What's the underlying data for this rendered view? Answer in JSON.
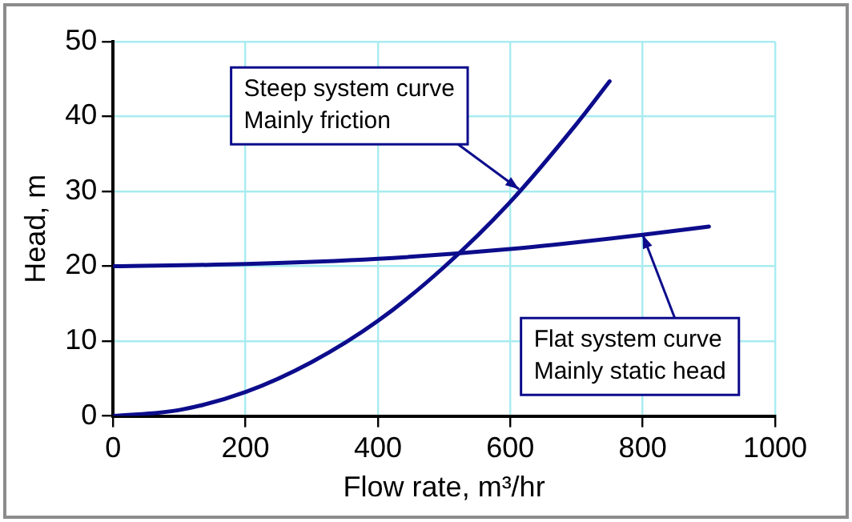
{
  "chart_data": {
    "type": "line",
    "xlabel": "Flow rate, m³/hr",
    "ylabel": "Head, m",
    "xlim": [
      0,
      1000
    ],
    "xticks": [
      0,
      200,
      400,
      600,
      800,
      1000
    ],
    "ylim": [
      0,
      50
    ],
    "yticks": [
      0,
      10,
      20,
      30,
      40,
      50
    ],
    "grid": true,
    "legend": false,
    "marker": "none",
    "line_style": "solid",
    "series": [
      {
        "color": "#0c0c8c",
        "x": [
          0,
          100,
          200,
          300,
          400,
          500,
          600,
          700,
          750
        ],
        "values": [
          0,
          0.8,
          3.2,
          7.2,
          12.7,
          19.9,
          28.6,
          39,
          44.7
        ]
      },
      {
        "color": "#0c0c8c",
        "x": [
          0,
          200,
          400,
          600,
          800,
          900
        ],
        "values": [
          20,
          20.3,
          21,
          22.3,
          24.2,
          25.3
        ]
      }
    ],
    "annotations": [
      {
        "text": "Steep system curve\nMainly friction",
        "x": 613,
        "y": 30.3
      },
      {
        "text": "Flat system curve\nMainly static head",
        "x": 800,
        "y": 24.2
      }
    ]
  }
}
